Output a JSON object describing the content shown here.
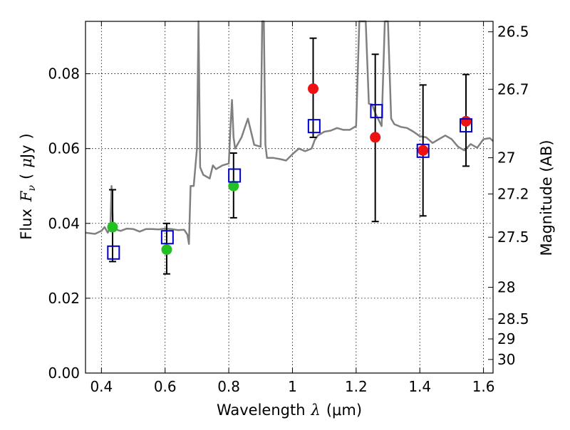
{
  "chart_data": {
    "type": "scatter",
    "x_axis": {
      "label_prefix": "Wavelength",
      "label_symbol": "λ",
      "label_unit": "(μm)",
      "range": [
        0.35,
        1.63
      ],
      "ticks": [
        0.4,
        0.6,
        0.8,
        1.0,
        1.2,
        1.4,
        1.6
      ],
      "tick_labels": [
        "0.4",
        "0.6",
        "0.8",
        "1",
        "1.2",
        "1.4",
        "1.6"
      ]
    },
    "y_axis": {
      "label_prefix": "Flux",
      "label_symbol": "F",
      "label_subscript": "ν",
      "label_unit_open": "(",
      "label_unit_mu": "μ",
      "label_unit_rest": "Jy",
      "label_unit_close": ")",
      "range": [
        0.0,
        0.094
      ],
      "ticks": [
        0.0,
        0.02,
        0.04,
        0.06,
        0.08
      ],
      "tick_labels": [
        "0.00",
        "0.02",
        "0.04",
        "0.06",
        "0.08"
      ]
    },
    "y2_axis": {
      "label": "Magnitude (AB)",
      "ticks": [
        26.5,
        26.7,
        27,
        27.2,
        27.5,
        28,
        28.5,
        29,
        30
      ],
      "tick_labels": [
        "26.5",
        "26.7",
        "27",
        "27.2",
        "27.5",
        "28",
        "28.5",
        "29",
        "30"
      ]
    },
    "grid": true,
    "colors": {
      "model": "#808080",
      "green_points": "#22c022",
      "red_points": "#ee1111",
      "model_boxes": "#0000cc",
      "errorbars": "#000000"
    },
    "model_spectrum": {
      "x": [
        0.35,
        0.38,
        0.4,
        0.41,
        0.42,
        0.428,
        0.432,
        0.436,
        0.44,
        0.46,
        0.48,
        0.5,
        0.52,
        0.54,
        0.56,
        0.58,
        0.6,
        0.62,
        0.64,
        0.66,
        0.67,
        0.675,
        0.68,
        0.69,
        0.7,
        0.705,
        0.71,
        0.72,
        0.74,
        0.75,
        0.76,
        0.78,
        0.8,
        0.805,
        0.81,
        0.815,
        0.82,
        0.84,
        0.86,
        0.88,
        0.9,
        0.905,
        0.91,
        0.915,
        0.92,
        0.94,
        0.96,
        0.98,
        1.0,
        1.02,
        1.04,
        1.06,
        1.07,
        1.08,
        1.1,
        1.12,
        1.14,
        1.16,
        1.18,
        1.2,
        1.21,
        1.22,
        1.23,
        1.24,
        1.25,
        1.26,
        1.28,
        1.29,
        1.3,
        1.31,
        1.32,
        1.34,
        1.36,
        1.38,
        1.4,
        1.42,
        1.44,
        1.46,
        1.48,
        1.5,
        1.52,
        1.54,
        1.56,
        1.58,
        1.6,
        1.62,
        1.63
      ],
      "y": [
        0.0375,
        0.0372,
        0.038,
        0.039,
        0.0375,
        0.039,
        0.05,
        0.04,
        0.0385,
        0.038,
        0.0386,
        0.0385,
        0.0378,
        0.0385,
        0.0385,
        0.0384,
        0.0386,
        0.0385,
        0.0382,
        0.0383,
        0.037,
        0.0345,
        0.05,
        0.05,
        0.06,
        0.094,
        0.055,
        0.053,
        0.052,
        0.0555,
        0.0545,
        0.0555,
        0.056,
        0.065,
        0.073,
        0.063,
        0.06,
        0.063,
        0.068,
        0.061,
        0.0605,
        0.094,
        0.094,
        0.061,
        0.0575,
        0.0575,
        0.0572,
        0.0568,
        0.0585,
        0.06,
        0.0593,
        0.06,
        0.0623,
        0.0635,
        0.0645,
        0.0648,
        0.0655,
        0.065,
        0.065,
        0.066,
        0.094,
        0.094,
        0.094,
        0.072,
        0.0718,
        0.0695,
        0.066,
        0.094,
        0.094,
        0.068,
        0.0665,
        0.0658,
        0.0655,
        0.0645,
        0.0633,
        0.063,
        0.0615,
        0.0625,
        0.0635,
        0.0625,
        0.0605,
        0.0595,
        0.0612,
        0.0602,
        0.0625,
        0.0628,
        0.062
      ]
    },
    "green_points": {
      "x": [
        0.435,
        0.605,
        0.815
      ],
      "y": [
        0.039,
        0.033,
        0.05
      ]
    },
    "red_points": {
      "x": [
        1.065,
        1.26,
        1.41,
        1.545
      ],
      "y": [
        0.076,
        0.063,
        0.0595,
        0.0673
      ]
    },
    "errorbars": {
      "x": [
        0.435,
        0.605,
        0.815,
        1.065,
        1.26,
        1.41,
        1.545
      ],
      "low": [
        0.0298,
        0.0265,
        0.0415,
        0.063,
        0.0405,
        0.042,
        0.0553
      ],
      "high": [
        0.049,
        0.04,
        0.0588,
        0.0895,
        0.0852,
        0.077,
        0.0798
      ]
    },
    "model_boxes": {
      "x": [
        0.438,
        0.607,
        0.818,
        1.068,
        1.264,
        1.41,
        1.545
      ],
      "y": [
        0.0322,
        0.0363,
        0.0528,
        0.066,
        0.07,
        0.0594,
        0.0662
      ]
    }
  }
}
